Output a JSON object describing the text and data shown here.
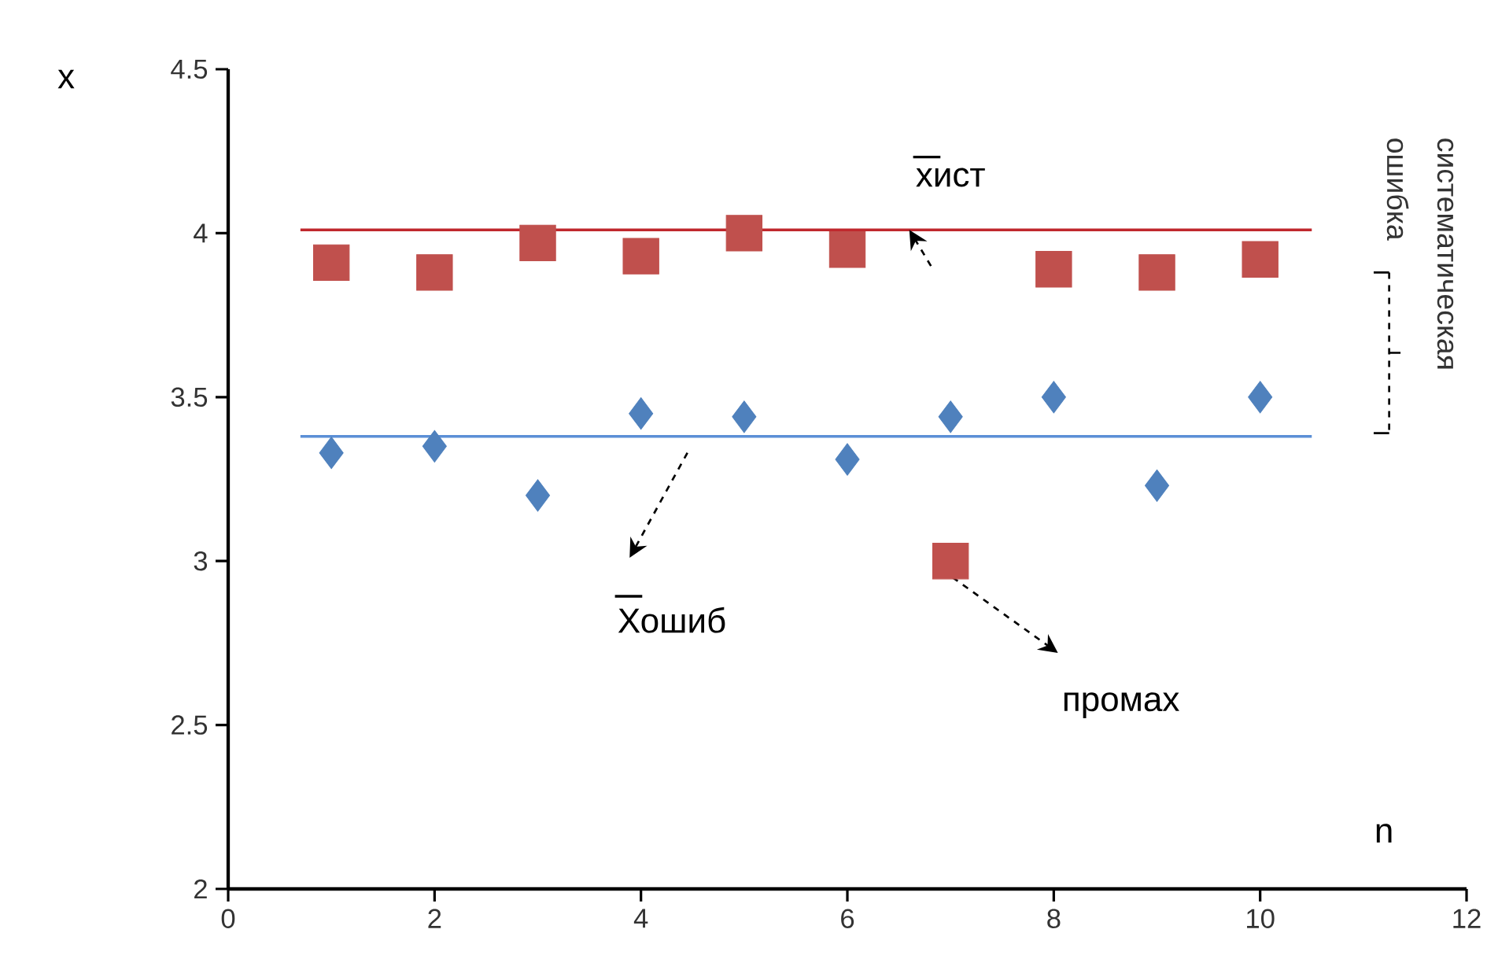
{
  "chart_data": {
    "type": "scatter",
    "xlabel": "n",
    "ylabel": "x",
    "x": [
      1,
      2,
      3,
      4,
      5,
      6,
      7,
      8,
      9,
      10
    ],
    "series": [
      {
        "color": "#c0504d",
        "marker": "square",
        "values": [
          3.91,
          3.88,
          3.97,
          3.93,
          4.0,
          3.95,
          3.0,
          3.89,
          3.88,
          3.92
        ]
      },
      {
        "color": "#4f81bd",
        "marker": "diamond",
        "values": [
          3.33,
          3.35,
          3.2,
          3.45,
          3.44,
          3.31,
          3.44,
          3.5,
          3.23,
          3.5
        ]
      }
    ],
    "ref_lines": [
      {
        "axis": "y",
        "value": 4.01,
        "color": "#c0282d"
      },
      {
        "axis": "y",
        "value": 3.38,
        "color": "#5b8fd6"
      }
    ],
    "xlim": [
      0,
      12
    ],
    "xticks": [
      0,
      2,
      4,
      6,
      8,
      10,
      12
    ],
    "ylim": [
      2,
      4.5
    ],
    "yticks": [
      2,
      2.5,
      3,
      3.5,
      4,
      4.5
    ],
    "annotations": [
      {
        "text": "хист",
        "x": 6.6,
        "y": 4.01
      },
      "Хошиб",
      "промах",
      "систематическая ошибка"
    ]
  }
}
